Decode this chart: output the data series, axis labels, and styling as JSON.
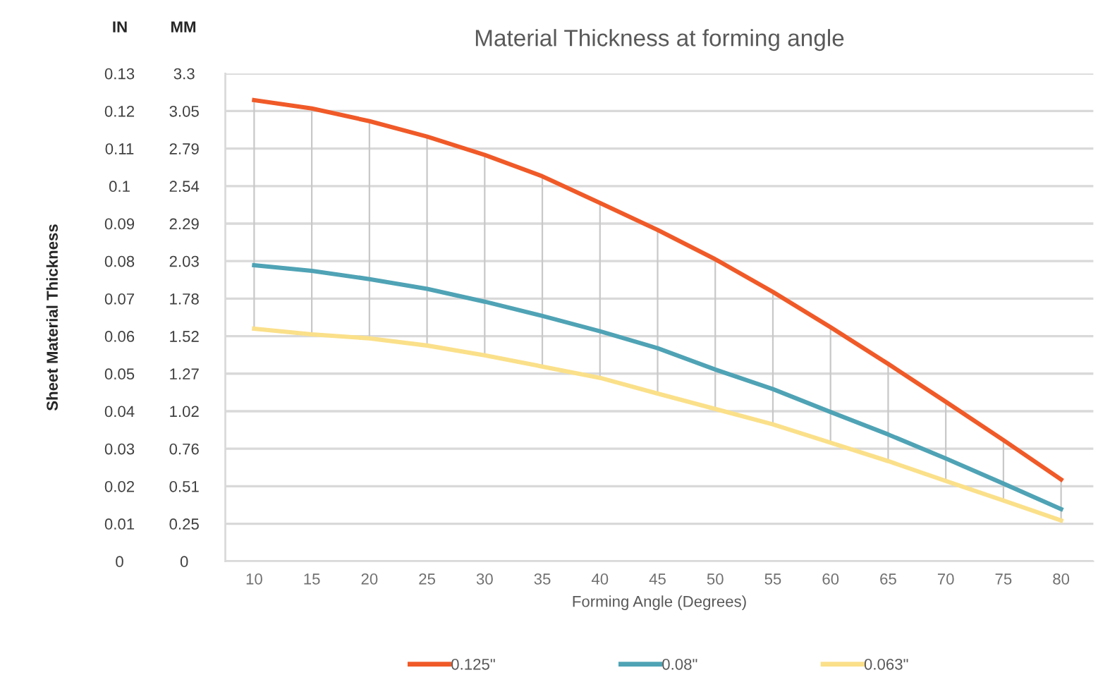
{
  "chart_data": {
    "type": "line",
    "title": "Material Thickness at forming angle",
    "xlabel": "Forming Angle (Degrees)",
    "ylabel": "Sheet Material Thickness",
    "y2label": "MM",
    "annotations": [
      "IN"
    ],
    "x": [
      10,
      15,
      20,
      25,
      30,
      35,
      40,
      45,
      50,
      55,
      60,
      65,
      70,
      75,
      80
    ],
    "series": [
      {
        "name": "0.125\"",
        "color": "#f05a28",
        "values": [
          0.1229,
          0.1207,
          0.1173,
          0.1132,
          0.1083,
          0.1026,
          0.0955,
          0.0883,
          0.0805,
          0.0718,
          0.0624,
          0.0526,
          0.0425,
          0.0323,
          0.0218
        ]
      },
      {
        "name": "0.08\"",
        "color": "#4fa3b5",
        "values": [
          0.0789,
          0.0774,
          0.0752,
          0.0726,
          0.0692,
          0.0654,
          0.0613,
          0.0568,
          0.0511,
          0.0459,
          0.0398,
          0.0338,
          0.0274,
          0.0207,
          0.0139
        ]
      },
      {
        "name": "0.063\"",
        "color": "#fbe08a",
        "values": [
          0.062,
          0.0605,
          0.0594,
          0.0575,
          0.0549,
          0.0519,
          0.0489,
          0.0447,
          0.0406,
          0.0365,
          0.0316,
          0.0267,
          0.0214,
          0.0162,
          0.0109
        ],
        "errors": [
          [
            0.062,
            0.1229
          ],
          [
            0.0605,
            0.1207
          ],
          [
            0.0594,
            0.1173
          ],
          [
            0.0575,
            0.1132
          ],
          [
            0.0549,
            0.1083
          ],
          [
            0.0519,
            0.1026
          ],
          [
            0.0489,
            0.0955
          ],
          [
            0.0447,
            0.0883
          ],
          [
            0.0406,
            0.0805
          ],
          [
            0.0365,
            0.0718
          ],
          [
            0.0316,
            0.0624
          ],
          [
            0.0267,
            0.0526
          ],
          [
            0.0214,
            0.0425
          ],
          [
            0.0162,
            0.0323
          ],
          [
            0.0109,
            0.0218
          ]
        ]
      }
    ],
    "xlim": [
      7.5,
      82.8
    ],
    "xticks": [
      10,
      15,
      20,
      25,
      30,
      35,
      40,
      45,
      50,
      55,
      60,
      65,
      70,
      75,
      80
    ],
    "ylim": [
      0,
      0.13
    ],
    "yticks": [
      0,
      0.01,
      0.02,
      0.03,
      0.04,
      0.05,
      0.06,
      0.07,
      0.08,
      0.09,
      0.1,
      0.11,
      0.12,
      0.13
    ],
    "y2lim": [
      0,
      3.302
    ],
    "y2ticks": [
      0,
      {
        "value": 0.254,
        "label": "0.25"
      },
      {
        "value": 0.508,
        "label": "0.51"
      },
      {
        "value": 0.762,
        "label": "0.76"
      },
      {
        "value": 1.016,
        "label": "1.02"
      },
      {
        "value": 1.27,
        "label": "1.27"
      },
      {
        "value": 1.524,
        "label": "1.52"
      },
      {
        "value": 1.778,
        "label": "1.78"
      },
      {
        "value": 2.032,
        "label": "2.03"
      },
      {
        "value": 2.286,
        "label": "2.29"
      },
      {
        "value": 2.54,
        "label": "2.54"
      },
      {
        "value": 2.794,
        "label": "2.79"
      },
      {
        "value": 3.048,
        "label": "3.05"
      },
      {
        "value": 3.302,
        "label": "3.3"
      }
    ],
    "grid": "y",
    "legend": "bottom"
  }
}
